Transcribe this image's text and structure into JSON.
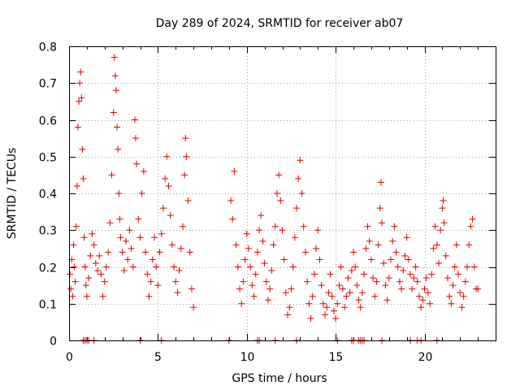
{
  "chart_data": {
    "type": "scatter",
    "title": "Day 289 of 2024, SRMTID for receiver ab07",
    "xlabel": "GPS time / hours",
    "ylabel": "SRMTID / TECUs",
    "xlim": [
      0,
      24
    ],
    "ylim": [
      0,
      0.8
    ],
    "xticks": [
      "0",
      "5",
      "10",
      "15",
      "20"
    ],
    "yticks": [
      "0",
      "0.1",
      "0.2",
      "0.3",
      "0.4",
      "0.5",
      "0.6",
      "0.7",
      "0.8"
    ],
    "grid": true,
    "marker": "plus",
    "color": "#e00000",
    "series": [
      {
        "name": "ab07",
        "points": [
          [
            0.05,
            0.18
          ],
          [
            0.1,
            0.14
          ],
          [
            0.15,
            0.22
          ],
          [
            0.2,
            0.12
          ],
          [
            0.25,
            0.26
          ],
          [
            0.3,
            0.2
          ],
          [
            0.35,
            0.16
          ],
          [
            0.4,
            0.31
          ],
          [
            0.45,
            0.42
          ],
          [
            0.5,
            0.58
          ],
          [
            0.55,
            0.65
          ],
          [
            0.6,
            0.7
          ],
          [
            0.65,
            0.73
          ],
          [
            0.7,
            0.66
          ],
          [
            0.75,
            0.52
          ],
          [
            0.8,
            0.44
          ],
          [
            0.85,
            0.28
          ],
          [
            0.9,
            0.2
          ],
          [
            0.95,
            0.15
          ],
          [
            1.0,
            0.12
          ],
          [
            1.1,
            0.17
          ],
          [
            1.2,
            0.23
          ],
          [
            1.3,
            0.29
          ],
          [
            1.4,
            0.26
          ],
          [
            1.5,
            0.21
          ],
          [
            1.6,
            0.19
          ],
          [
            1.7,
            0.23
          ],
          [
            1.8,
            0.18
          ],
          [
            1.9,
            0.12
          ],
          [
            2.0,
            0.16
          ],
          [
            2.1,
            0.2
          ],
          [
            2.2,
            0.24
          ],
          [
            2.3,
            0.32
          ],
          [
            2.4,
            0.45
          ],
          [
            2.5,
            0.62
          ],
          [
            2.55,
            0.77
          ],
          [
            2.6,
            0.72
          ],
          [
            2.65,
            0.68
          ],
          [
            2.7,
            0.58
          ],
          [
            2.75,
            0.52
          ],
          [
            2.8,
            0.4
          ],
          [
            2.85,
            0.33
          ],
          [
            2.9,
            0.28
          ],
          [
            3.0,
            0.24
          ],
          [
            3.1,
            0.19
          ],
          [
            3.2,
            0.27
          ],
          [
            3.3,
            0.22
          ],
          [
            3.4,
            0.3
          ],
          [
            3.5,
            0.25
          ],
          [
            3.6,
            0.2
          ],
          [
            3.7,
            0.6
          ],
          [
            3.75,
            0.55
          ],
          [
            3.8,
            0.48
          ],
          [
            3.9,
            0.33
          ],
          [
            4.0,
            0.28
          ],
          [
            4.1,
            0.4
          ],
          [
            4.2,
            0.46
          ],
          [
            4.3,
            0.24
          ],
          [
            4.4,
            0.18
          ],
          [
            4.5,
            0.12
          ],
          [
            4.6,
            0.16
          ],
          [
            4.7,
            0.22
          ],
          [
            4.8,
            0.28
          ],
          [
            4.9,
            0.2
          ],
          [
            5.0,
            0.15
          ],
          [
            5.1,
            0.24
          ],
          [
            5.2,
            0.29
          ],
          [
            5.3,
            0.36
          ],
          [
            5.4,
            0.44
          ],
          [
            5.5,
            0.5
          ],
          [
            5.6,
            0.42
          ],
          [
            5.7,
            0.34
          ],
          [
            5.8,
            0.26
          ],
          [
            5.9,
            0.2
          ],
          [
            6.0,
            0.16
          ],
          [
            6.1,
            0.13
          ],
          [
            6.2,
            0.19
          ],
          [
            6.3,
            0.25
          ],
          [
            6.4,
            0.31
          ],
          [
            6.5,
            0.45
          ],
          [
            6.55,
            0.55
          ],
          [
            6.6,
            0.5
          ],
          [
            6.7,
            0.38
          ],
          [
            6.8,
            0.24
          ],
          [
            6.9,
            0.14
          ],
          [
            7.0,
            0.09
          ],
          [
            9.1,
            0.38
          ],
          [
            9.2,
            0.33
          ],
          [
            9.3,
            0.46
          ],
          [
            9.4,
            0.26
          ],
          [
            9.5,
            0.2
          ],
          [
            9.6,
            0.14
          ],
          [
            9.7,
            0.1
          ],
          [
            9.8,
            0.16
          ],
          [
            9.9,
            0.22
          ],
          [
            10.0,
            0.29
          ],
          [
            10.1,
            0.25
          ],
          [
            10.2,
            0.2
          ],
          [
            10.3,
            0.15
          ],
          [
            10.4,
            0.12
          ],
          [
            10.5,
            0.18
          ],
          [
            10.6,
            0.24
          ],
          [
            10.7,
            0.3
          ],
          [
            10.8,
            0.34
          ],
          [
            10.9,
            0.27
          ],
          [
            11.0,
            0.21
          ],
          [
            11.1,
            0.16
          ],
          [
            11.2,
            0.11
          ],
          [
            11.3,
            0.14
          ],
          [
            11.4,
            0.19
          ],
          [
            11.5,
            0.26
          ],
          [
            11.6,
            0.31
          ],
          [
            11.7,
            0.4
          ],
          [
            11.8,
            0.45
          ],
          [
            11.9,
            0.38
          ],
          [
            12.0,
            0.3
          ],
          [
            12.1,
            0.22
          ],
          [
            12.2,
            0.13
          ],
          [
            12.3,
            0.07
          ],
          [
            12.4,
            0.09
          ],
          [
            12.5,
            0.14
          ],
          [
            12.6,
            0.2
          ],
          [
            12.7,
            0.28
          ],
          [
            12.8,
            0.36
          ],
          [
            12.9,
            0.44
          ],
          [
            13.0,
            0.49
          ],
          [
            13.1,
            0.4
          ],
          [
            13.2,
            0.31
          ],
          [
            13.3,
            0.24
          ],
          [
            13.4,
            0.16
          ],
          [
            13.5,
            0.1
          ],
          [
            13.6,
            0.06
          ],
          [
            13.7,
            0.12
          ],
          [
            13.8,
            0.18
          ],
          [
            13.9,
            0.25
          ],
          [
            14.0,
            0.3
          ],
          [
            14.1,
            0.22
          ],
          [
            14.2,
            0.15
          ],
          [
            14.3,
            0.1
          ],
          [
            14.4,
            0.07
          ],
          [
            14.5,
            0.09
          ],
          [
            14.6,
            0.13
          ],
          [
            14.7,
            0.18
          ],
          [
            14.8,
            0.12
          ],
          [
            14.9,
            0.08
          ],
          [
            15.0,
            0.06
          ],
          [
            15.1,
            0.1
          ],
          [
            15.2,
            0.15
          ],
          [
            15.3,
            0.2
          ],
          [
            15.4,
            0.14
          ],
          [
            15.5,
            0.09
          ],
          [
            15.6,
            0.12
          ],
          [
            15.7,
            0.17
          ],
          [
            15.8,
            0.13
          ],
          [
            15.9,
            0.19
          ],
          [
            16.0,
            0.24
          ],
          [
            16.1,
            0.2
          ],
          [
            16.2,
            0.15
          ],
          [
            16.3,
            0.11
          ],
          [
            16.4,
            0.09
          ],
          [
            16.5,
            0.13
          ],
          [
            16.6,
            0.18
          ],
          [
            16.7,
            0.25
          ],
          [
            16.8,
            0.31
          ],
          [
            16.9,
            0.27
          ],
          [
            17.0,
            0.22
          ],
          [
            17.1,
            0.17
          ],
          [
            17.2,
            0.12
          ],
          [
            17.3,
            0.16
          ],
          [
            17.4,
            0.26
          ],
          [
            17.5,
            0.36
          ],
          [
            17.55,
            0.43
          ],
          [
            17.6,
            0.32
          ],
          [
            17.7,
            0.21
          ],
          [
            17.8,
            0.15
          ],
          [
            17.9,
            0.11
          ],
          [
            18.0,
            0.17
          ],
          [
            18.1,
            0.22
          ],
          [
            18.2,
            0.27
          ],
          [
            18.3,
            0.31
          ],
          [
            18.4,
            0.24
          ],
          [
            18.5,
            0.2
          ],
          [
            18.6,
            0.16
          ],
          [
            18.7,
            0.14
          ],
          [
            18.8,
            0.19
          ],
          [
            18.9,
            0.23
          ],
          [
            19.0,
            0.28
          ],
          [
            19.1,
            0.22
          ],
          [
            19.2,
            0.18
          ],
          [
            19.3,
            0.14
          ],
          [
            19.4,
            0.17
          ],
          [
            19.5,
            0.2
          ],
          [
            19.6,
            0.16
          ],
          [
            19.7,
            0.12
          ],
          [
            19.8,
            0.09
          ],
          [
            19.9,
            0.11
          ],
          [
            20.0,
            0.14
          ],
          [
            20.1,
            0.17
          ],
          [
            20.2,
            0.13
          ],
          [
            20.3,
            0.1
          ],
          [
            20.4,
            0.18
          ],
          [
            20.5,
            0.25
          ],
          [
            20.6,
            0.31
          ],
          [
            20.7,
            0.26
          ],
          [
            20.8,
            0.21
          ],
          [
            20.9,
            0.3
          ],
          [
            21.0,
            0.36
          ],
          [
            21.05,
            0.38
          ],
          [
            21.1,
            0.32
          ],
          [
            21.2,
            0.23
          ],
          [
            21.3,
            0.17
          ],
          [
            21.4,
            0.12
          ],
          [
            21.5,
            0.1
          ],
          [
            21.6,
            0.15
          ],
          [
            21.7,
            0.2
          ],
          [
            21.8,
            0.26
          ],
          [
            21.9,
            0.18
          ],
          [
            22.0,
            0.13
          ],
          [
            22.1,
            0.09
          ],
          [
            22.2,
            0.12
          ],
          [
            22.3,
            0.16
          ],
          [
            22.4,
            0.2
          ],
          [
            22.5,
            0.26
          ],
          [
            22.6,
            0.31
          ],
          [
            22.7,
            0.33
          ],
          [
            22.8,
            0.2
          ],
          [
            22.9,
            0.14
          ],
          [
            23.0,
            0.14
          ],
          [
            0.8,
            0
          ],
          [
            0.9,
            0
          ],
          [
            1.0,
            0
          ],
          [
            1.1,
            0
          ],
          [
            1.4,
            0
          ],
          [
            4.0,
            0
          ],
          [
            5.2,
            0
          ],
          [
            9.0,
            0
          ],
          [
            10.6,
            0
          ],
          [
            10.7,
            0
          ],
          [
            11.6,
            0
          ],
          [
            12.8,
            0
          ],
          [
            15.1,
            0
          ],
          [
            15.9,
            0
          ],
          [
            16.0,
            0
          ],
          [
            16.3,
            0
          ],
          [
            16.4,
            0
          ],
          [
            16.5,
            0
          ],
          [
            16.6,
            0
          ],
          [
            17.6,
            0
          ],
          [
            19.2,
            0
          ],
          [
            19.6,
            0
          ],
          [
            19.8,
            0
          ],
          [
            20.7,
            0
          ]
        ]
      }
    ]
  }
}
